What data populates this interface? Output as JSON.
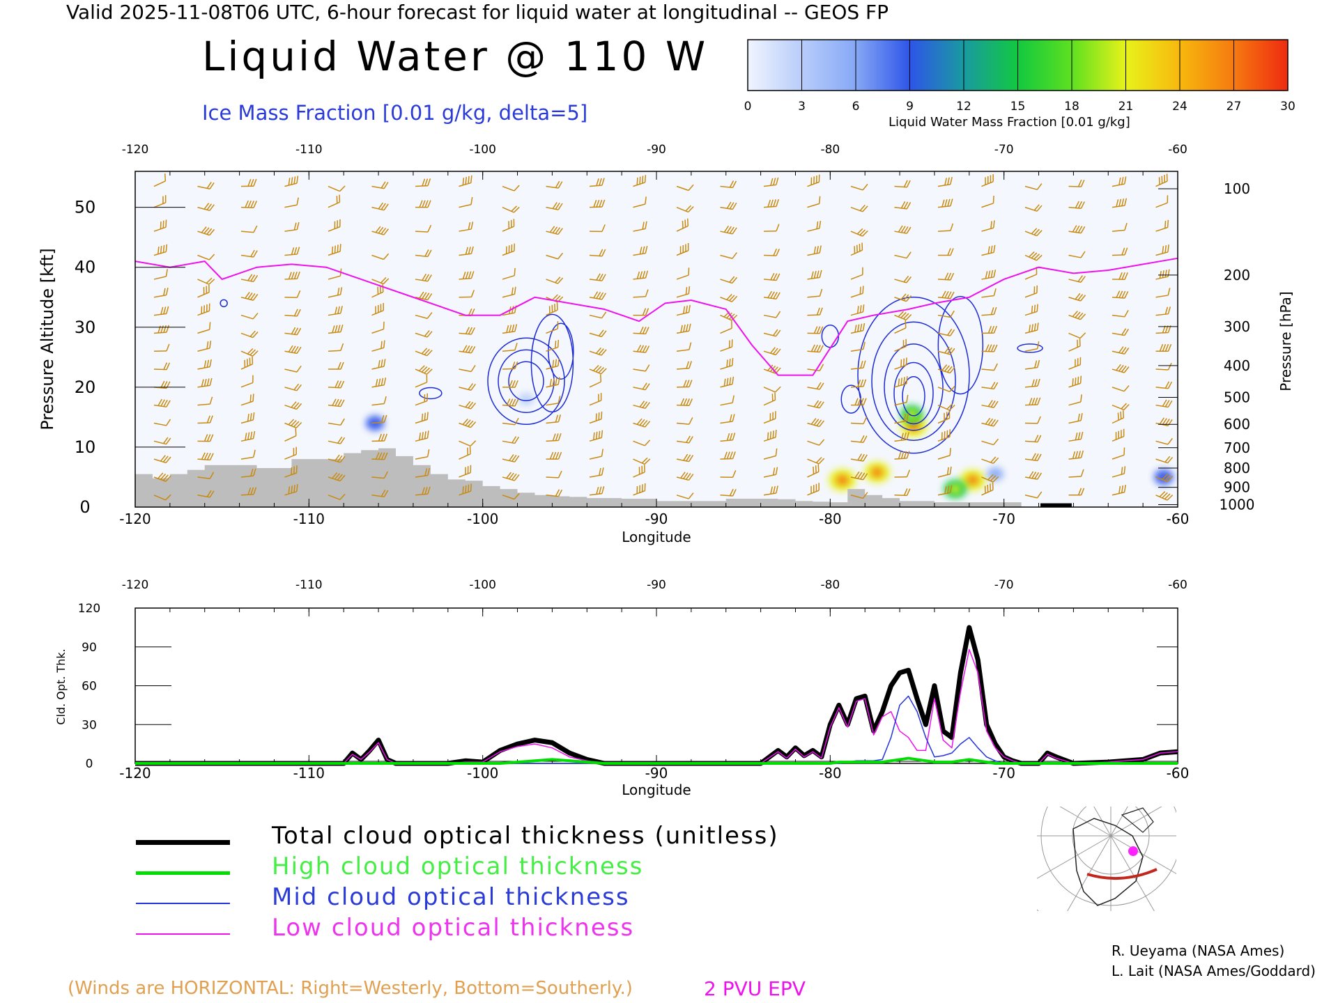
{
  "header": {
    "title": "Valid 2025-11-08T06 UTC, 6-hour forecast for liquid water at longitudinal -- GEOS FP",
    "main_title": "Liquid Water @ 110 W",
    "ice_label": "Ice Mass Fraction [0.01 g/kg, delta=5]"
  },
  "colorbar": {
    "label": "Liquid Water Mass Fraction [0.01 g/kg]",
    "ticks": [
      "0",
      "3",
      "6",
      "9",
      "12",
      "15",
      "18",
      "21",
      "24",
      "27",
      "30"
    ],
    "colors": [
      "#f0f4ff",
      "#b8cdfa",
      "#86a8f6",
      "#2e55e8",
      "#1a9aa0",
      "#12c840",
      "#5ee020",
      "#e8f21a",
      "#f7b80e",
      "#f67a10",
      "#ee2a10"
    ]
  },
  "chart_data": [
    {
      "type": "heatmap",
      "xlabel": "Longitude",
      "ylabel": "Pressure Altitude [kft]",
      "y2label": "Pressure [hPa]",
      "xlim": [
        -120,
        -60
      ],
      "ylim": [
        0,
        56
      ],
      "x_ticks": [
        "-120",
        "-110",
        "-100",
        "-90",
        "-80",
        "-70",
        "-60"
      ],
      "x_tick_values": [
        -120,
        -110,
        -100,
        -90,
        -80,
        -70,
        -60
      ],
      "y_ticks": [
        "0",
        "10",
        "20",
        "30",
        "40",
        "50"
      ],
      "y_tick_values": [
        0,
        10,
        20,
        30,
        40,
        50
      ],
      "pressure_ticks": [
        "100",
        "200",
        "300",
        "400",
        "500",
        "600",
        "700",
        "800",
        "900",
        "1000"
      ],
      "pressure_tick_alt": [
        53.1,
        38.7,
        30.1,
        23.6,
        18.3,
        13.8,
        9.9,
        6.5,
        3.3,
        0.4
      ],
      "epv_2pvu": {
        "x": [
          -120,
          -118,
          -116,
          -115,
          -113,
          -111,
          -109,
          -107,
          -104,
          -101,
          -99,
          -97,
          -95,
          -93,
          -91,
          -89.5,
          -88,
          -86,
          -84.5,
          -83,
          -81,
          -79,
          -77.5,
          -75.5,
          -74,
          -72,
          -70,
          -68,
          -66,
          -64,
          -62,
          -60
        ],
        "y": [
          41,
          40,
          41,
          38,
          40,
          40.5,
          40,
          38,
          35,
          32,
          32,
          35,
          34,
          33,
          31,
          34,
          34.5,
          33,
          27,
          22,
          22,
          31,
          32,
          33,
          34,
          35,
          38,
          40,
          39,
          39.5,
          40.5,
          41.5
        ]
      },
      "orography": {
        "x": [
          -120,
          -119,
          -118,
          -117,
          -116,
          -115,
          -114,
          -113,
          -112,
          -111,
          -110,
          -109,
          -108,
          -107,
          -106,
          -105,
          -104,
          -103,
          -102,
          -101,
          -100,
          -99,
          -98,
          -97,
          -96,
          -95,
          -94,
          -93,
          -92,
          -91,
          -90,
          -89,
          -88,
          -87,
          -86,
          -85,
          -84,
          -83,
          -82,
          -81,
          -80,
          -79,
          -78,
          -77,
          -76,
          -75,
          -74,
          -73,
          -72,
          -71,
          -70
        ],
        "y": [
          5.5,
          4.8,
          5.5,
          6.2,
          7,
          7,
          7,
          6.5,
          6.5,
          8,
          8,
          8,
          9,
          9.5,
          9.8,
          8.5,
          7,
          5.5,
          4.6,
          4.4,
          3.5,
          3,
          2.4,
          2,
          1.8,
          1.7,
          1.5,
          1.5,
          1.4,
          1.4,
          1,
          1,
          1,
          1,
          1.4,
          1.4,
          1.4,
          1.3,
          1,
          0.9,
          0.8,
          3,
          2,
          1.5,
          1,
          1,
          0.8,
          0.8,
          0.8,
          0.8,
          0.8
        ]
      },
      "liquid_water_blobs": [
        {
          "x": -106.2,
          "y": 14,
          "value": 9
        },
        {
          "x": -97.5,
          "y": 18,
          "value": 4
        },
        {
          "x": -75.2,
          "y": 13.5,
          "value": 21
        },
        {
          "x": -75.3,
          "y": 15.5,
          "value": 15
        },
        {
          "x": -79.3,
          "y": 4.5,
          "value": 22
        },
        {
          "x": -77.3,
          "y": 5.8,
          "value": 20
        },
        {
          "x": -71.8,
          "y": 4.5,
          "value": 20
        },
        {
          "x": -72.8,
          "y": 3,
          "value": 16
        },
        {
          "x": -60.8,
          "y": 5,
          "value": 10
        },
        {
          "x": -70.5,
          "y": 5.5,
          "value": 6
        }
      ]
    },
    {
      "type": "line",
      "xlabel": "Longitude",
      "ylabel": "Cld. Opt. Thk.",
      "xlim": [
        -120,
        -60
      ],
      "ylim": [
        0,
        120
      ],
      "x_ticks": [
        "-120",
        "-110",
        "-100",
        "-90",
        "-80",
        "-70",
        "-60"
      ],
      "x_tick_values": [
        -120,
        -110,
        -100,
        -90,
        -80,
        -70,
        -60
      ],
      "y_ticks": [
        "0",
        "30",
        "60",
        "90",
        "120"
      ],
      "y_tick_values": [
        0,
        30,
        60,
        90,
        120
      ],
      "x": [
        -120,
        -108,
        -107.5,
        -107,
        -106.5,
        -106,
        -105.5,
        -105,
        -102,
        -101,
        -100,
        -99,
        -98,
        -97,
        -96,
        -95,
        -94,
        -93,
        -84,
        -83,
        -82.5,
        -82,
        -81.5,
        -81,
        -80.5,
        -80,
        -79.5,
        -79,
        -78.5,
        -78,
        -77.5,
        -77,
        -76.5,
        -76,
        -75.5,
        -75,
        -74.5,
        -74,
        -73.5,
        -73,
        -72.5,
        -72,
        -71.5,
        -71,
        -70.5,
        -70,
        -69.5,
        -69,
        -68,
        -67.5,
        -67,
        -66,
        -64,
        -62,
        -61,
        -60
      ],
      "series": [
        {
          "name": "Total cloud optical thickness (unitless)",
          "color": "#000000",
          "values": [
            0,
            0,
            8,
            3,
            10,
            18,
            3,
            0,
            0,
            2,
            1,
            10,
            15,
            18,
            16,
            8,
            3,
            0,
            0,
            10,
            5,
            12,
            6,
            10,
            5,
            30,
            45,
            30,
            50,
            52,
            25,
            40,
            60,
            70,
            72,
            50,
            30,
            60,
            25,
            20,
            70,
            105,
            80,
            30,
            15,
            5,
            2,
            0,
            0,
            8,
            5,
            0,
            1,
            3,
            8,
            9
          ]
        },
        {
          "name": "High cloud optical thickness",
          "color": "#00dd00",
          "values": [
            0,
            0,
            0,
            0,
            0,
            0,
            0,
            0,
            0,
            0,
            0,
            0,
            1,
            2,
            3,
            2,
            1,
            0,
            0,
            0,
            0,
            0,
            0,
            0,
            0,
            0,
            1,
            1,
            1,
            1,
            1,
            1,
            2,
            3,
            4,
            3,
            2,
            1,
            1,
            1,
            2,
            3,
            2,
            1,
            0,
            0,
            0,
            0,
            0,
            0,
            0,
            0,
            0,
            0,
            0,
            0
          ]
        },
        {
          "name": "Mid cloud optical thickness",
          "color": "#2233dd",
          "values": [
            0,
            0,
            0,
            0,
            0,
            0,
            0,
            0,
            0,
            0,
            0,
            0,
            0,
            0,
            0,
            0,
            0,
            0,
            0,
            0,
            0,
            0,
            0,
            0,
            0,
            0,
            0,
            1,
            2,
            2,
            2,
            3,
            20,
            45,
            52,
            40,
            20,
            5,
            6,
            8,
            15,
            20,
            12,
            5,
            2,
            0,
            0,
            0,
            0,
            0,
            0,
            0,
            0,
            0,
            0,
            0
          ]
        },
        {
          "name": "Low cloud optical thickness",
          "color": "#ee11ee",
          "values": [
            0,
            0,
            7,
            3,
            9,
            16,
            3,
            0,
            0,
            1,
            1,
            9,
            13,
            15,
            12,
            5,
            2,
            0,
            0,
            9,
            4,
            11,
            5,
            9,
            4,
            28,
            43,
            28,
            48,
            50,
            22,
            36,
            40,
            25,
            20,
            10,
            10,
            50,
            18,
            12,
            55,
            88,
            70,
            25,
            12,
            5,
            2,
            0,
            0,
            7,
            4,
            0,
            1,
            3,
            8,
            9
          ]
        }
      ]
    }
  ],
  "legend": [
    {
      "label": "Total cloud optical thickness (unitless)",
      "color": "#000000"
    },
    {
      "label": "High cloud optical thickness",
      "color": "#00dd00"
    },
    {
      "label": "Mid cloud optical thickness",
      "color": "#2233dd"
    },
    {
      "label": "Low cloud optical thickness",
      "color": "#ee11ee"
    }
  ],
  "notes": {
    "winds": "(Winds are HORIZONTAL: Right=Westerly, Bottom=Southerly.)",
    "epv": "2 PVU EPV",
    "credit1": "R. Ueyama (NASA Ames)",
    "credit2": "L. Lait (NASA Ames/Goddard)"
  },
  "colors": {
    "epv": "#ee11ee",
    "orography": "#bdbdbd",
    "wind_barb": "#c88a10",
    "ice_contour": "#1c2ad6",
    "route": "#c0281e",
    "location_dot": "#ff22ff"
  }
}
